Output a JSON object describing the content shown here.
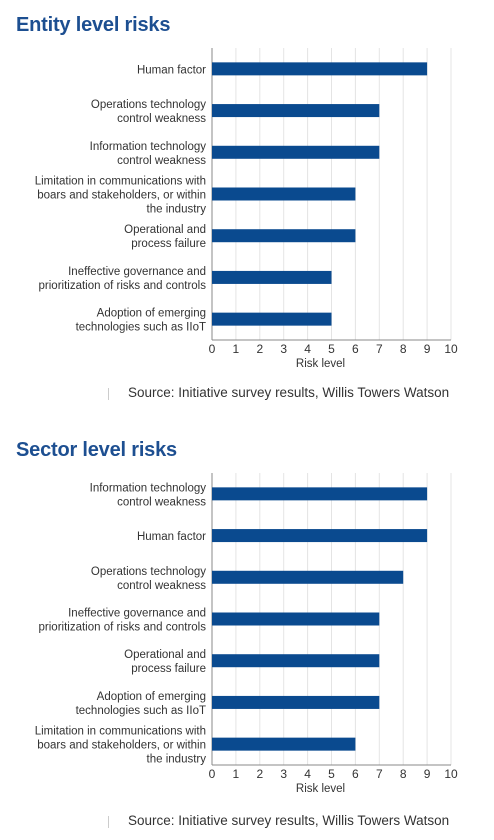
{
  "chart_data": [
    {
      "type": "bar",
      "orientation": "horizontal",
      "title": "Entity level risks",
      "categories": [
        [
          "Human factor"
        ],
        [
          "Operations technology",
          "control weakness"
        ],
        [
          "Information technology",
          "control weakness"
        ],
        [
          "Limitation in communications with",
          "boars and stakeholders, or within",
          "the industry"
        ],
        [
          "Operational and",
          "process failure"
        ],
        [
          "Ineffective governance and",
          "prioritization of risks and controls"
        ],
        [
          "Adoption of emerging",
          "technologies such as IIoT"
        ]
      ],
      "values": [
        9,
        7,
        7,
        6,
        6,
        5,
        5
      ],
      "xlabel": "Risk level",
      "ylabel": "",
      "xlim": [
        0,
        10
      ],
      "ticks": [
        "0",
        "1",
        "2",
        "3",
        "4",
        "5",
        "6",
        "7",
        "8",
        "9",
        "10"
      ],
      "grid": true,
      "bar_color": "#0a4a8f",
      "source": "Source: Initiative survey results, Willis Towers Watson"
    },
    {
      "type": "bar",
      "orientation": "horizontal",
      "title": "Sector level risks",
      "categories": [
        [
          "Information technology",
          "control weakness"
        ],
        [
          "Human factor"
        ],
        [
          "Operations technology",
          "control weakness"
        ],
        [
          "Ineffective governance and",
          "prioritization of risks and controls"
        ],
        [
          "Operational and",
          "process failure"
        ],
        [
          "Adoption of emerging",
          "technologies such as IIoT"
        ],
        [
          "Limitation in communications with",
          "boars and stakeholders, or within",
          "the industry"
        ]
      ],
      "values": [
        9,
        9,
        8,
        7,
        7,
        7,
        6
      ],
      "xlabel": "Risk level",
      "ylabel": "",
      "xlim": [
        0,
        10
      ],
      "ticks": [
        "0",
        "1",
        "2",
        "3",
        "4",
        "5",
        "6",
        "7",
        "8",
        "9",
        "10"
      ],
      "grid": true,
      "bar_color": "#0a4a8f",
      "source": "Source: Initiative survey results, Willis Towers Watson"
    }
  ]
}
